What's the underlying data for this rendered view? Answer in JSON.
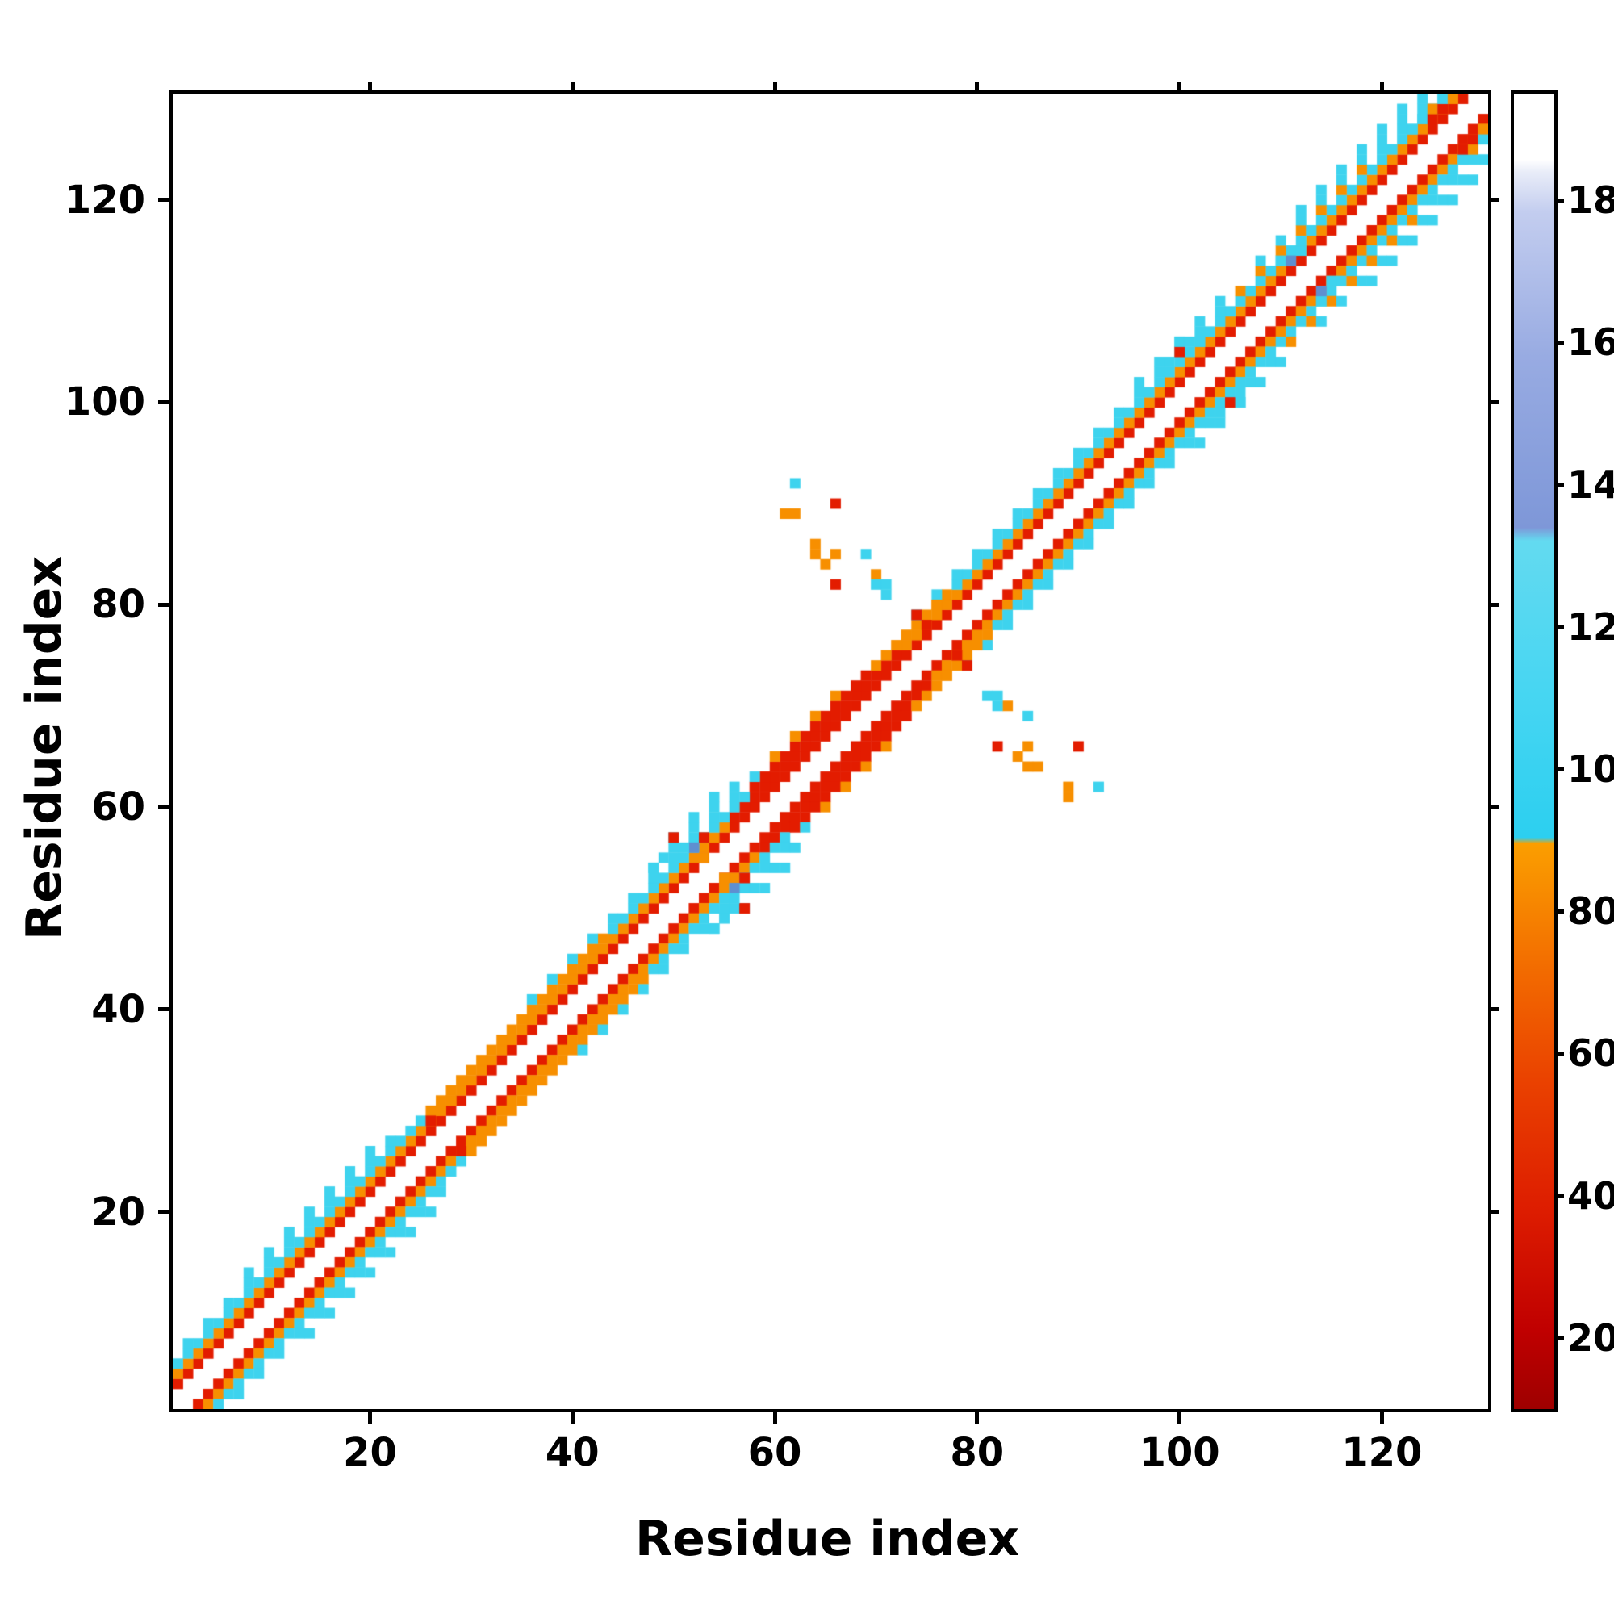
{
  "figure": {
    "xlabel": "Residue index",
    "ylabel": "Residue index"
  },
  "chart_data": {
    "type": "heatmap",
    "title": "",
    "xlabel": "Residue index",
    "ylabel": "Residue index",
    "x_range": [
      1,
      130
    ],
    "y_range": [
      1,
      130
    ],
    "x_ticks": [
      20,
      40,
      60,
      80,
      100,
      120
    ],
    "y_ticks": [
      20,
      40,
      60,
      80,
      100,
      120
    ],
    "grid": false,
    "symmetric": true,
    "legend_position": "right-colorbar",
    "background": "#ffffff",
    "palette": {
      "red": "#e31c00",
      "orange": "#f78f00",
      "cyan": "#3ed3ee",
      "blue": "#5f8fd0"
    },
    "colorbar": {
      "min": 10,
      "max": 195,
      "ticks": [
        20,
        40,
        60,
        80,
        100,
        120,
        140,
        160,
        180
      ],
      "stops": [
        [
          0,
          "#9e0000"
        ],
        [
          6,
          "#c00000"
        ],
        [
          15,
          "#dd1c00"
        ],
        [
          25,
          "#ea4200"
        ],
        [
          33,
          "#f26900"
        ],
        [
          40,
          "#f88f00"
        ],
        [
          43,
          "#fb9e00"
        ],
        [
          43.4,
          "#2ccff0"
        ],
        [
          55,
          "#48d6f2"
        ],
        [
          66,
          "#63daf0"
        ],
        [
          67,
          "#7e97d8"
        ],
        [
          80,
          "#98abe2"
        ],
        [
          91,
          "#c3cdef"
        ],
        [
          94,
          "#e8ecf8"
        ],
        [
          95,
          "#ffffff"
        ],
        [
          100,
          "#ffffff"
        ]
      ]
    },
    "diagonal_segments": [
      {
        "offset": 2,
        "from": 1,
        "to": 128,
        "color": "red"
      },
      {
        "offset": 3,
        "from": 1,
        "to": 55,
        "color": "orange"
      },
      {
        "offset": 3,
        "from": 56,
        "to": 72,
        "color": "red"
      },
      {
        "offset": 3,
        "from": 73,
        "to": 128,
        "color": "orange"
      },
      {
        "offset": 4,
        "from": 1,
        "to": 25,
        "color": "cyan"
      },
      {
        "offset": 4,
        "from": 26,
        "to": 43,
        "color": "orange"
      },
      {
        "offset": 4,
        "from": 44,
        "to": 57,
        "color": "cyan"
      },
      {
        "offset": 4,
        "from": 58,
        "to": 69,
        "color": "red"
      },
      {
        "offset": 4,
        "from": 70,
        "to": 77,
        "color": "orange"
      },
      {
        "offset": 4,
        "from": 78,
        "to": 128,
        "color": "cyan"
      },
      {
        "offset": 5,
        "from": 2,
        "to": 22,
        "color": "cyan"
      },
      {
        "offset": 5,
        "from": 36,
        "to": 58,
        "color": "cyan"
      },
      {
        "offset": 5,
        "from": 60,
        "to": 66,
        "color": "orange"
      },
      {
        "offset": 5,
        "from": 73,
        "to": 104,
        "color": "cyan"
      },
      {
        "offset": 5,
        "from": 106,
        "to": 118,
        "color": "orange"
      },
      {
        "offset": 5,
        "from": 119,
        "to": 127,
        "color": "cyan"
      },
      {
        "offset": 6,
        "from": 8,
        "to": 20,
        "color": "cyan"
      },
      {
        "offset": 6,
        "from": 48,
        "to": 57,
        "color": "cyan"
      },
      {
        "offset": 6,
        "from": 96,
        "to": 104,
        "color": "cyan"
      },
      {
        "offset": 6,
        "from": 108,
        "to": 126,
        "color": "cyan"
      },
      {
        "offset": 7,
        "from": 50,
        "to": 55,
        "color": "cyan"
      },
      {
        "offset": 7,
        "from": 112,
        "to": 123,
        "color": "cyan"
      }
    ],
    "cells": [
      [
        62,
        92,
        "cyan"
      ],
      [
        61,
        89,
        "orange"
      ],
      [
        62,
        89,
        "orange"
      ],
      [
        66,
        90,
        "red"
      ],
      [
        64,
        86,
        "orange"
      ],
      [
        64,
        85,
        "orange"
      ],
      [
        66,
        85,
        "orange"
      ],
      [
        69,
        85,
        "cyan"
      ],
      [
        65,
        84,
        "orange"
      ],
      [
        70,
        83,
        "orange"
      ],
      [
        66,
        82,
        "red"
      ],
      [
        70,
        82,
        "cyan"
      ],
      [
        71,
        82,
        "cyan"
      ],
      [
        71,
        81,
        "cyan"
      ],
      [
        26,
        29,
        "red"
      ],
      [
        27,
        30,
        "orange"
      ],
      [
        28,
        31,
        "orange"
      ],
      [
        50,
        57,
        "red"
      ],
      [
        53,
        57,
        "red"
      ],
      [
        52,
        56,
        "blue"
      ],
      [
        51,
        56,
        "cyan"
      ],
      [
        49,
        55,
        "cyan"
      ],
      [
        48,
        54,
        "cyan"
      ],
      [
        53,
        55,
        "orange"
      ],
      [
        74,
        79,
        "red"
      ],
      [
        75,
        78,
        "red"
      ],
      [
        73,
        77,
        "orange"
      ],
      [
        76,
        80,
        "orange"
      ],
      [
        99,
        104,
        "cyan"
      ],
      [
        100,
        105,
        "red"
      ],
      [
        100,
        106,
        "cyan"
      ],
      [
        101,
        106,
        "cyan"
      ],
      [
        102,
        106,
        "cyan"
      ],
      [
        110,
        114,
        "cyan"
      ],
      [
        111,
        114,
        "blue"
      ],
      [
        112,
        115,
        "cyan"
      ],
      [
        113,
        117,
        "cyan"
      ],
      [
        123,
        127,
        "cyan"
      ],
      [
        124,
        128,
        "cyan"
      ],
      [
        125,
        128,
        "red"
      ],
      [
        125,
        129,
        "orange"
      ],
      [
        126,
        129,
        "red"
      ],
      [
        126,
        130,
        "cyan"
      ],
      [
        127,
        130,
        "orange"
      ]
    ]
  }
}
